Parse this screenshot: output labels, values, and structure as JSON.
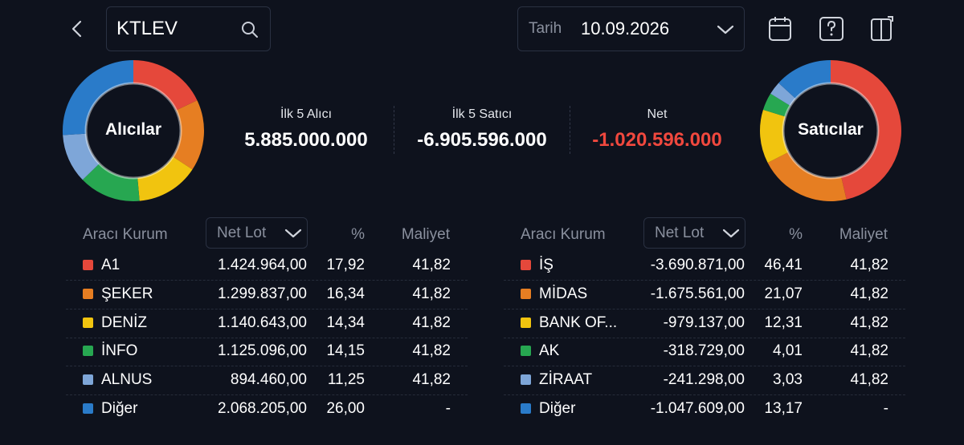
{
  "header": {
    "symbol": "KTLEV",
    "date_label": "Tarih",
    "date": "10.09.2026"
  },
  "summary": {
    "buyers_title": "Alıcılar",
    "sellers_title": "Satıcılar",
    "top5_buyers_label": "İlk 5 Alıcı",
    "top5_buyers": "5.885.000.000",
    "top5_sellers_label": "İlk 5 Satıcı",
    "top5_sellers": "-6.905.596.000",
    "net_label": "Net",
    "net": "-1.020.596.000"
  },
  "buyers": {
    "columns": [
      "Aracı Kurum",
      "Net Lot",
      "%",
      "Maliyet"
    ],
    "rows": [
      {
        "name": "A1",
        "color": "#e5483b",
        "net_lot": "1.424.964,00",
        "pct": "17,92",
        "cost": "41,82"
      },
      {
        "name": "ŞEKER",
        "color": "#e67e22",
        "net_lot": "1.299.837,00",
        "pct": "16,34",
        "cost": "41,82"
      },
      {
        "name": "DENİZ",
        "color": "#f1c40f",
        "net_lot": "1.140.643,00",
        "pct": "14,34",
        "cost": "41,82"
      },
      {
        "name": "İNFO",
        "color": "#27a751",
        "net_lot": "1.125.096,00",
        "pct": "14,15",
        "cost": "41,82"
      },
      {
        "name": "ALNUS",
        "color": "#7ea6d8",
        "net_lot": "894.460,00",
        "pct": "11,25",
        "cost": "41,82"
      },
      {
        "name": "Diğer",
        "color": "#2a7bc9",
        "net_lot": "2.068.205,00",
        "pct": "26,00",
        "cost": "-"
      }
    ]
  },
  "sellers": {
    "columns": [
      "Aracı Kurum",
      "Net Lot",
      "%",
      "Maliyet"
    ],
    "rows": [
      {
        "name": "İŞ",
        "color": "#e5483b",
        "net_lot": "-3.690.871,00",
        "pct": "46,41",
        "cost": "41,82"
      },
      {
        "name": "MİDAS",
        "color": "#e67e22",
        "net_lot": "-1.675.561,00",
        "pct": "21,07",
        "cost": "41,82"
      },
      {
        "name": "BANK OF...",
        "color": "#f1c40f",
        "net_lot": "-979.137,00",
        "pct": "12,31",
        "cost": "41,82"
      },
      {
        "name": "AK",
        "color": "#27a751",
        "net_lot": "-318.729,00",
        "pct": "4,01",
        "cost": "41,82"
      },
      {
        "name": "ZİRAAT",
        "color": "#7ea6d8",
        "net_lot": "-241.298,00",
        "pct": "3,03",
        "cost": "41,82"
      },
      {
        "name": "Diğer",
        "color": "#2a7bc9",
        "net_lot": "-1.047.609,00",
        "pct": "13,17",
        "cost": "-"
      }
    ]
  }
}
